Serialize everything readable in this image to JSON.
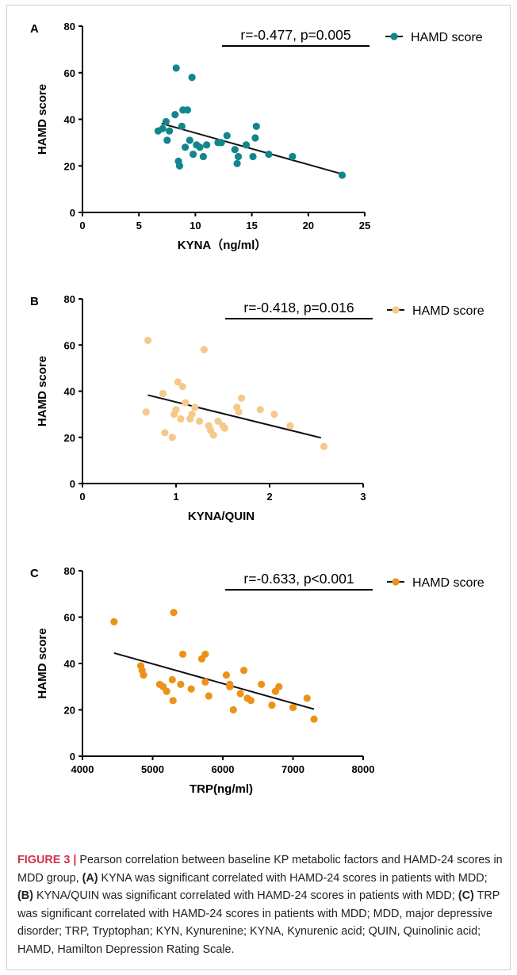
{
  "panels": [
    {
      "letter": "A",
      "stat": "r=-0.477, p=0.005",
      "legend": "HAMD score",
      "color": "#12868c",
      "chart_data": {
        "type": "scatter",
        "xlabel": "KYNA（ng/ml）",
        "ylabel": "HAMD score",
        "xlim": [
          0,
          25
        ],
        "ylim": [
          0,
          80
        ],
        "xticks": [
          "0",
          "5",
          "10",
          "15",
          "20",
          "25"
        ],
        "yticks": [
          "0",
          "20",
          "40",
          "60",
          "80"
        ],
        "series": [
          {
            "name": "HAMD score",
            "points": [
              [
                6.7,
                35
              ],
              [
                7.1,
                36
              ],
              [
                7.4,
                39
              ],
              [
                7.5,
                31
              ],
              [
                7.7,
                35
              ],
              [
                8.2,
                42
              ],
              [
                8.3,
                62
              ],
              [
                8.5,
                22
              ],
              [
                8.6,
                20
              ],
              [
                8.8,
                37
              ],
              [
                8.9,
                44
              ],
              [
                9.1,
                28
              ],
              [
                9.3,
                44
              ],
              [
                9.5,
                31
              ],
              [
                9.7,
                58
              ],
              [
                9.8,
                25
              ],
              [
                10.1,
                29
              ],
              [
                10.4,
                28
              ],
              [
                10.7,
                24
              ],
              [
                11.0,
                29
              ],
              [
                12.0,
                30
              ],
              [
                12.3,
                30
              ],
              [
                12.8,
                33
              ],
              [
                13.5,
                27
              ],
              [
                13.7,
                21
              ],
              [
                13.8,
                24
              ],
              [
                14.5,
                29
              ],
              [
                15.1,
                24
              ],
              [
                15.3,
                32
              ],
              [
                15.4,
                37
              ],
              [
                16.5,
                25
              ],
              [
                18.6,
                24
              ],
              [
                23.0,
                16
              ]
            ]
          }
        ],
        "fit_line": [
          [
            7.0,
            38.2
          ],
          [
            23.0,
            16.5
          ]
        ],
        "grid": false,
        "legend_position": "top-right"
      }
    },
    {
      "letter": "B",
      "stat": "r=-0.418, p=0.016",
      "legend": "HAMD score",
      "color": "#f5c98a",
      "chart_data": {
        "type": "scatter",
        "xlabel": "KYNA/QUIN",
        "ylabel": "HAMD score",
        "xlim": [
          0,
          3
        ],
        "ylim": [
          0,
          80
        ],
        "xticks": [
          "0",
          "1",
          "2",
          "3"
        ],
        "yticks": [
          "0",
          "20",
          "40",
          "60",
          "80"
        ],
        "series": [
          {
            "name": "HAMD score",
            "points": [
              [
                0.68,
                31
              ],
              [
                0.7,
                62
              ],
              [
                0.86,
                39
              ],
              [
                0.88,
                22
              ],
              [
                0.96,
                20
              ],
              [
                0.98,
                30
              ],
              [
                1.0,
                32
              ],
              [
                1.02,
                44
              ],
              [
                1.05,
                28
              ],
              [
                1.07,
                42
              ],
              [
                1.1,
                35
              ],
              [
                1.15,
                28
              ],
              [
                1.17,
                30
              ],
              [
                1.2,
                33
              ],
              [
                1.25,
                27
              ],
              [
                1.3,
                58
              ],
              [
                1.35,
                25
              ],
              [
                1.37,
                23
              ],
              [
                1.4,
                21
              ],
              [
                1.45,
                27
              ],
              [
                1.5,
                25
              ],
              [
                1.52,
                24
              ],
              [
                1.65,
                33
              ],
              [
                1.67,
                31
              ],
              [
                1.7,
                37
              ],
              [
                1.9,
                32
              ],
              [
                2.05,
                30
              ],
              [
                2.22,
                25
              ],
              [
                2.58,
                16
              ]
            ]
          }
        ],
        "fit_line": [
          [
            0.7,
            38.3
          ],
          [
            2.55,
            19.8
          ]
        ],
        "grid": false,
        "legend_position": "top-right"
      }
    },
    {
      "letter": "C",
      "stat": "r=-0.633, p<0.001",
      "legend": "HAMD score",
      "color": "#ed9218",
      "chart_data": {
        "type": "scatter",
        "xlabel": "TRP(ng/ml)",
        "ylabel": "HAMD score",
        "xlim": [
          4000,
          8000
        ],
        "ylim": [
          0,
          80
        ],
        "xticks": [
          "4000",
          "5000",
          "6000",
          "7000",
          "8000"
        ],
        "yticks": [
          "0",
          "20",
          "40",
          "60",
          "80"
        ],
        "series": [
          {
            "name": "HAMD score",
            "points": [
              [
                4450,
                58
              ],
              [
                4830,
                39
              ],
              [
                4850,
                37
              ],
              [
                4870,
                35
              ],
              [
                5100,
                31
              ],
              [
                5150,
                30
              ],
              [
                5200,
                28
              ],
              [
                5280,
                33
              ],
              [
                5290,
                24
              ],
              [
                5300,
                62
              ],
              [
                5400,
                31
              ],
              [
                5430,
                44
              ],
              [
                5550,
                29
              ],
              [
                5700,
                42
              ],
              [
                5750,
                44
              ],
              [
                5750,
                32
              ],
              [
                5800,
                26
              ],
              [
                6050,
                35
              ],
              [
                6100,
                31
              ],
              [
                6100,
                30
              ],
              [
                6150,
                20
              ],
              [
                6250,
                27
              ],
              [
                6300,
                37
              ],
              [
                6350,
                25
              ],
              [
                6400,
                24
              ],
              [
                6550,
                31
              ],
              [
                6700,
                22
              ],
              [
                6750,
                28
              ],
              [
                6800,
                30
              ],
              [
                7000,
                21
              ],
              [
                7200,
                25
              ],
              [
                7300,
                16
              ]
            ]
          }
        ],
        "fit_line": [
          [
            4450,
            44.5
          ],
          [
            7300,
            20.3
          ]
        ],
        "grid": false,
        "legend_position": "top-right"
      }
    }
  ],
  "caption": {
    "label": "FIGURE 3 |",
    "segments": [
      {
        "bold": false,
        "text": " Pearson correlation between baseline KP metabolic factors and HAMD-24 scores in MDD group, "
      },
      {
        "bold": true,
        "text": "(A)"
      },
      {
        "bold": false,
        "text": " KYNA was significant correlated with HAMD-24 scores in patients with MDD; "
      },
      {
        "bold": true,
        "text": "(B)"
      },
      {
        "bold": false,
        "text": " KYNA/QUIN was significant correlated with HAMD-24 scores in patients with MDD; "
      },
      {
        "bold": true,
        "text": "(C)"
      },
      {
        "bold": false,
        "text": " TRP was significant correlated with HAMD-24 scores in patients with MDD; MDD, major depressive disorder; TRP, Tryptophan; KYN, Kynurenine; KYNA, Kynurenic acid; QUIN, Quinolinic acid; HAMD, Hamilton Depression Rating Scale."
      }
    ]
  }
}
